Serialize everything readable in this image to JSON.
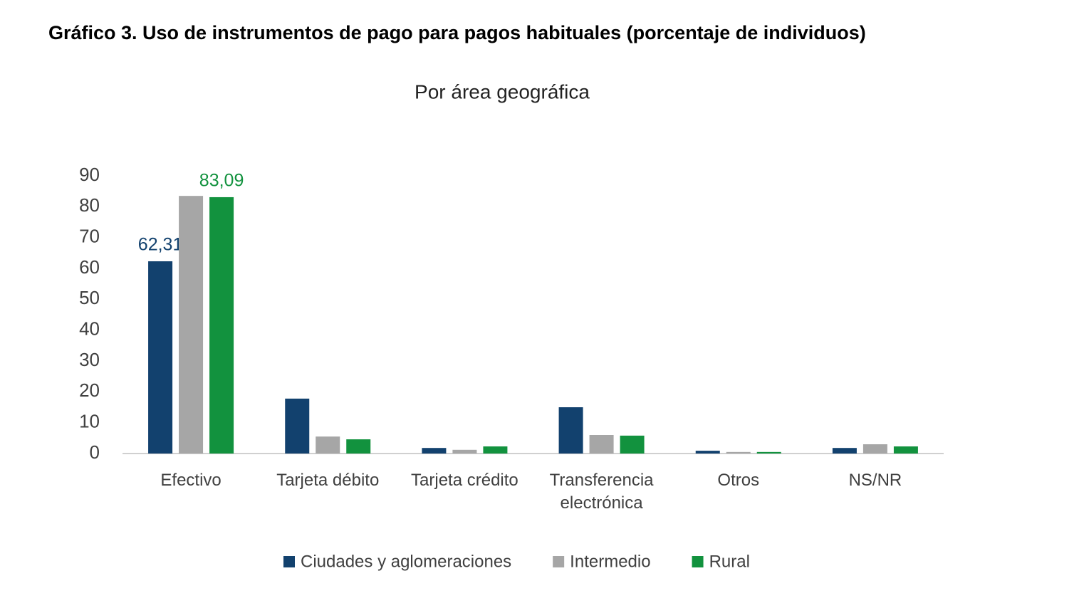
{
  "chart_data": {
    "type": "bar",
    "title": "Gráfico 3. Uso de instrumentos de pago para pagos habituales (porcentaje de individuos)",
    "subtitle": "Por área geográfica",
    "categories": [
      "Efectivo",
      "Tarjeta débito",
      "Tarjeta crédito",
      "Transferencia electrónica",
      "Otros",
      "NS/NR"
    ],
    "series": [
      {
        "name": "Ciudades y aglomeraciones",
        "color": "#12416e",
        "values": [
          62.31,
          17.8,
          1.8,
          15.0,
          0.9,
          1.8
        ],
        "value_labels": [
          "62,31",
          null,
          null,
          null,
          null,
          null
        ]
      },
      {
        "name": "Intermedio",
        "color": "#a6a6a6",
        "values": [
          83.5,
          5.5,
          1.2,
          6.0,
          0.5,
          3.0
        ]
      },
      {
        "name": "Rural",
        "color": "#12923e",
        "values": [
          83.09,
          4.6,
          2.3,
          5.8,
          0.5,
          2.3
        ],
        "value_labels": [
          "83,09",
          null,
          null,
          null,
          null,
          null
        ]
      }
    ],
    "ylim": [
      0,
      90
    ],
    "yticks": [
      0,
      10,
      20,
      30,
      40,
      50,
      60,
      70,
      80,
      90
    ],
    "grid": false
  }
}
